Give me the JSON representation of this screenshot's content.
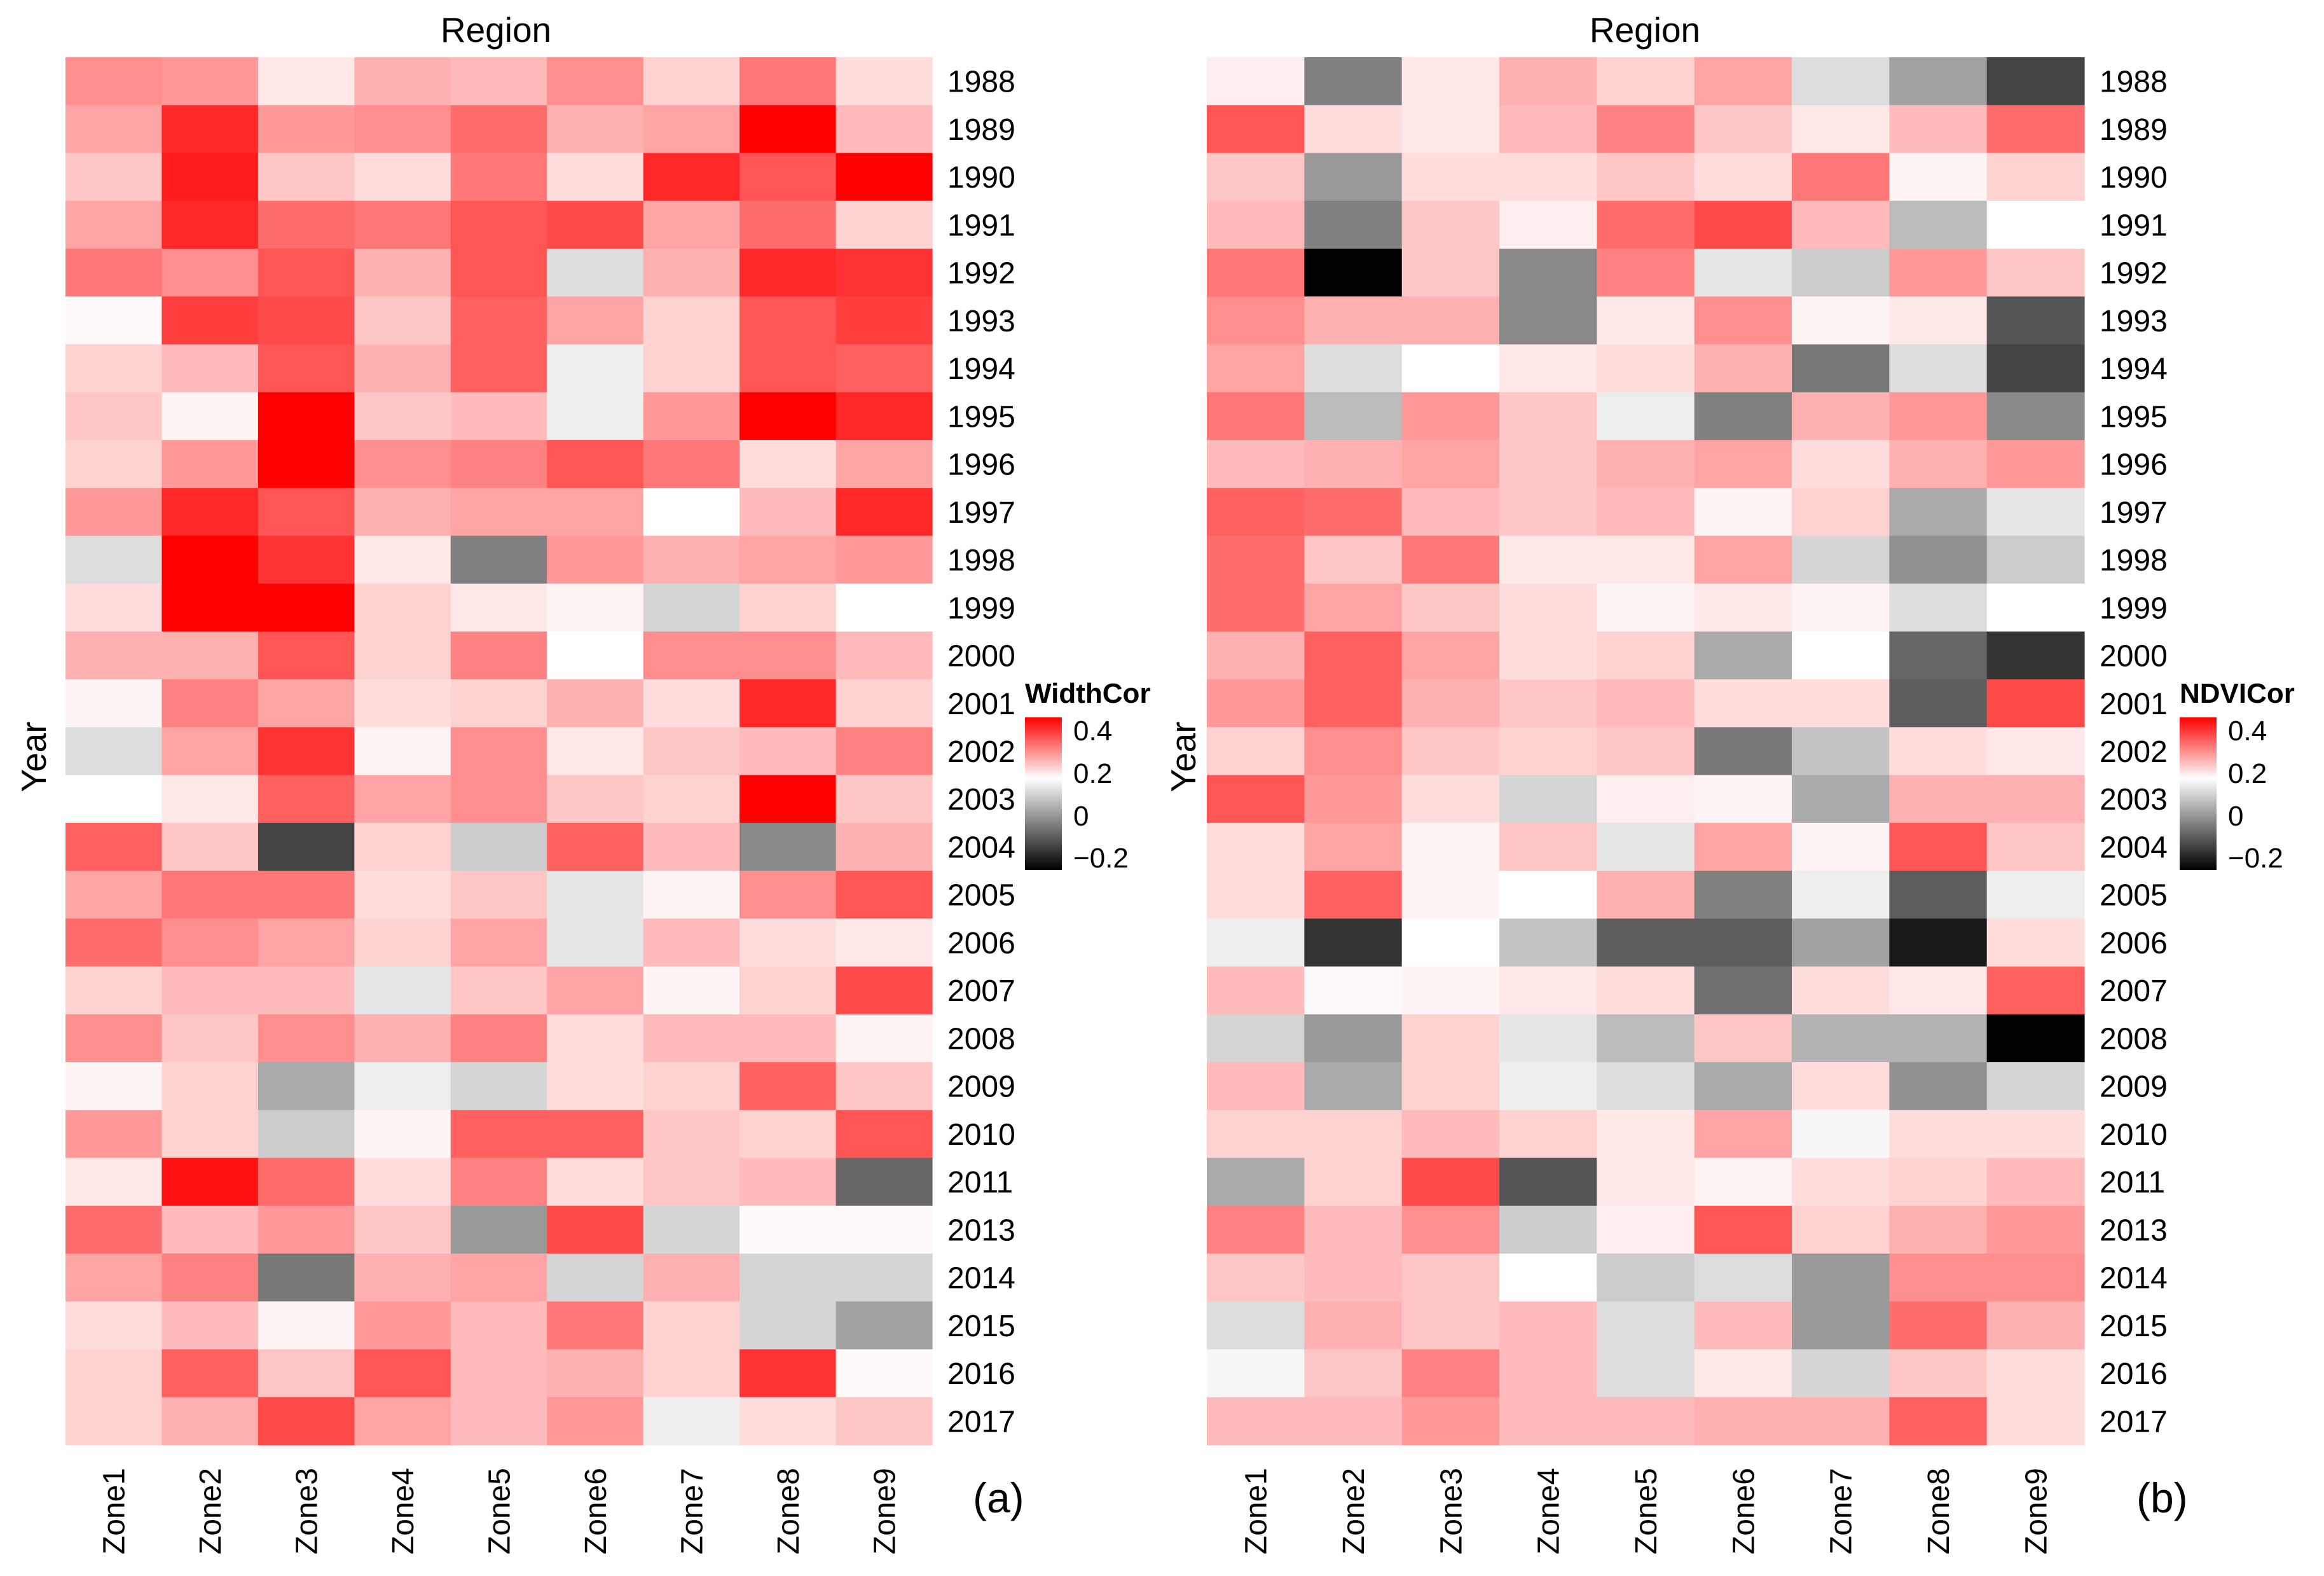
{
  "figure": {
    "panels": [
      "(a)",
      "(b)"
    ]
  },
  "chart_data": [
    {
      "type": "heatmap",
      "panel_label": "(a)",
      "title": "Region",
      "xlabel": "Region",
      "ylabel": "Year",
      "legend_title": "WidthCor",
      "legend_ticks": [
        "0.4",
        "0.2",
        "0",
        "−0.2"
      ],
      "scale": {
        "low": -0.3,
        "mid": 0,
        "high": 0.45,
        "low_color": "#000000",
        "mid_color": "#ffffff",
        "high_color": "#ff0000"
      },
      "columns": [
        "Zone1",
        "Zone2",
        "Zone3",
        "Zone4",
        "Zone5",
        "Zone6",
        "Zone7",
        "Zone8",
        "Zone9"
      ],
      "rows": [
        "1988",
        "1989",
        "1990",
        "1991",
        "1992",
        "1993",
        "1994",
        "1995",
        "1996",
        "1997",
        "1998",
        "1999",
        "2000",
        "2001",
        "2002",
        "2003",
        "2004",
        "2005",
        "2006",
        "2007",
        "2008",
        "2009",
        "2010",
        "2011",
        "2013",
        "2014",
        "2015",
        "2016",
        "2017"
      ],
      "values": [
        [
          0.2,
          0.18,
          0.04,
          0.14,
          0.12,
          0.2,
          0.08,
          0.24,
          0.06
        ],
        [
          0.16,
          0.38,
          0.18,
          0.2,
          0.26,
          0.14,
          0.16,
          0.45,
          0.12
        ],
        [
          0.1,
          0.4,
          0.1,
          0.06,
          0.24,
          0.06,
          0.38,
          0.3,
          0.45
        ],
        [
          0.16,
          0.38,
          0.26,
          0.24,
          0.3,
          0.32,
          0.16,
          0.26,
          0.08
        ],
        [
          0.24,
          0.2,
          0.3,
          0.14,
          0.3,
          -0.04,
          0.14,
          0.38,
          0.36
        ],
        [
          0.01,
          0.34,
          0.32,
          0.1,
          0.28,
          0.16,
          0.08,
          0.3,
          0.34
        ],
        [
          0.08,
          0.12,
          0.3,
          0.14,
          0.28,
          -0.02,
          0.08,
          0.3,
          0.28
        ],
        [
          0.1,
          0.02,
          0.45,
          0.1,
          0.12,
          -0.02,
          0.18,
          0.45,
          0.38
        ],
        [
          0.08,
          0.18,
          0.45,
          0.2,
          0.22,
          0.3,
          0.24,
          0.06,
          0.16
        ],
        [
          0.18,
          0.38,
          0.3,
          0.14,
          0.16,
          0.16,
          0.0,
          0.12,
          0.38
        ],
        [
          -0.04,
          0.45,
          0.36,
          0.04,
          -0.15,
          0.18,
          0.14,
          0.16,
          0.18
        ],
        [
          0.06,
          0.45,
          0.45,
          0.08,
          0.04,
          0.02,
          -0.05,
          0.08,
          0.0
        ],
        [
          0.14,
          0.14,
          0.3,
          0.08,
          0.22,
          0.0,
          0.2,
          0.2,
          0.12
        ],
        [
          0.02,
          0.22,
          0.16,
          0.06,
          0.08,
          0.14,
          0.06,
          0.38,
          0.08
        ],
        [
          -0.04,
          0.16,
          0.36,
          0.02,
          0.2,
          0.04,
          0.1,
          0.12,
          0.22
        ],
        [
          0.0,
          0.04,
          0.28,
          0.16,
          0.2,
          0.1,
          0.08,
          0.45,
          0.1
        ],
        [
          0.28,
          0.1,
          -0.22,
          0.08,
          -0.06,
          0.28,
          0.12,
          -0.14,
          0.14
        ],
        [
          0.16,
          0.24,
          0.24,
          0.06,
          0.1,
          -0.03,
          0.02,
          0.2,
          0.3
        ],
        [
          0.26,
          0.2,
          0.16,
          0.08,
          0.16,
          -0.03,
          0.12,
          0.06,
          0.04
        ],
        [
          0.08,
          0.12,
          0.12,
          -0.03,
          0.1,
          0.16,
          0.02,
          0.08,
          0.32
        ],
        [
          0.2,
          0.1,
          0.2,
          0.14,
          0.22,
          0.06,
          0.12,
          0.12,
          0.02
        ],
        [
          0.02,
          0.08,
          -0.1,
          -0.02,
          -0.05,
          0.06,
          0.08,
          0.28,
          0.1
        ],
        [
          0.18,
          0.08,
          -0.06,
          0.02,
          0.28,
          0.28,
          0.1,
          0.08,
          0.3
        ],
        [
          0.04,
          0.42,
          0.26,
          0.06,
          0.22,
          0.06,
          0.1,
          0.12,
          -0.18
        ],
        [
          0.26,
          0.12,
          0.18,
          0.1,
          -0.12,
          0.32,
          -0.05,
          0.01,
          0.01
        ],
        [
          0.16,
          0.22,
          -0.16,
          0.14,
          0.16,
          -0.05,
          0.14,
          -0.05,
          -0.05
        ],
        [
          0.06,
          0.12,
          0.02,
          0.18,
          0.12,
          0.24,
          0.08,
          -0.05,
          -0.11
        ],
        [
          0.08,
          0.28,
          0.1,
          0.3,
          0.12,
          0.14,
          0.08,
          0.36,
          0.01
        ],
        [
          0.08,
          0.14,
          0.32,
          0.16,
          0.12,
          0.18,
          -0.02,
          0.06,
          0.1
        ]
      ]
    },
    {
      "type": "heatmap",
      "panel_label": "(b)",
      "title": "Region",
      "xlabel": "Region",
      "ylabel": "Year",
      "legend_title": "NDVICor",
      "legend_ticks": [
        "0.4",
        "0.2",
        "0",
        "−0.2"
      ],
      "scale": {
        "low": -0.3,
        "mid": 0,
        "high": 0.45,
        "low_color": "#000000",
        "mid_color": "#ffffff",
        "high_color": "#ff0000"
      },
      "columns": [
        "Zone1",
        "Zone2",
        "Zone3",
        "Zone4",
        "Zone5",
        "Zone6",
        "Zone7",
        "Zone8",
        "Zone9"
      ],
      "rows": [
        "1988",
        "1989",
        "1990",
        "1991",
        "1992",
        "1993",
        "1994",
        "1995",
        "1996",
        "1997",
        "1998",
        "1999",
        "2000",
        "2001",
        "2002",
        "2003",
        "2004",
        "2005",
        "2006",
        "2007",
        "2008",
        "2009",
        "2010",
        "2011",
        "2013",
        "2014",
        "2015",
        "2016",
        "2017"
      ],
      "values": [
        [
          0.03,
          -0.15,
          0.04,
          0.14,
          0.08,
          0.16,
          -0.04,
          -0.11,
          -0.22
        ],
        [
          0.3,
          0.06,
          0.04,
          0.12,
          0.22,
          0.1,
          0.04,
          0.12,
          0.26
        ],
        [
          0.1,
          -0.12,
          0.06,
          0.06,
          0.1,
          0.06,
          0.24,
          0.02,
          0.08
        ],
        [
          0.12,
          -0.15,
          0.1,
          0.03,
          0.26,
          0.32,
          0.12,
          -0.08,
          0.0
        ],
        [
          0.24,
          -0.3,
          0.1,
          -0.14,
          0.22,
          -0.03,
          -0.06,
          0.18,
          0.1
        ],
        [
          0.2,
          0.14,
          0.14,
          -0.14,
          0.04,
          0.2,
          0.02,
          0.04,
          -0.2
        ],
        [
          0.16,
          -0.04,
          0.0,
          0.04,
          0.06,
          0.14,
          -0.16,
          -0.04,
          -0.22
        ],
        [
          0.24,
          -0.08,
          0.18,
          0.1,
          -0.02,
          -0.15,
          0.14,
          0.18,
          -0.14
        ],
        [
          0.12,
          0.14,
          0.16,
          0.1,
          0.14,
          0.16,
          0.06,
          0.14,
          0.18
        ],
        [
          0.28,
          0.26,
          0.12,
          0.1,
          0.12,
          0.02,
          0.08,
          -0.1,
          -0.03
        ],
        [
          0.26,
          0.1,
          0.24,
          0.04,
          0.04,
          0.16,
          -0.05,
          -0.13,
          -0.06
        ],
        [
          0.26,
          0.16,
          0.1,
          0.06,
          0.02,
          0.04,
          0.02,
          -0.04,
          0.0
        ],
        [
          0.14,
          0.28,
          0.16,
          0.06,
          0.08,
          -0.1,
          0.0,
          -0.18,
          -0.24
        ],
        [
          0.18,
          0.28,
          0.14,
          0.1,
          0.12,
          0.06,
          0.06,
          -0.19,
          0.32
        ],
        [
          0.08,
          0.2,
          0.1,
          0.08,
          0.1,
          -0.16,
          -0.07,
          0.06,
          0.04
        ],
        [
          0.3,
          0.18,
          0.06,
          -0.05,
          0.03,
          0.02,
          -0.1,
          0.14,
          0.14
        ],
        [
          0.06,
          0.16,
          0.02,
          0.1,
          -0.03,
          0.16,
          0.02,
          0.3,
          0.1
        ],
        [
          0.06,
          0.28,
          0.02,
          0.0,
          0.14,
          -0.15,
          -0.02,
          -0.19,
          -0.02
        ],
        [
          -0.02,
          -0.24,
          0.0,
          -0.07,
          -0.19,
          -0.19,
          -0.11,
          -0.27,
          0.06
        ],
        [
          0.12,
          0.01,
          0.02,
          0.04,
          0.06,
          -0.17,
          0.06,
          0.04,
          0.28
        ],
        [
          -0.05,
          -0.12,
          0.08,
          -0.03,
          -0.08,
          0.1,
          -0.09,
          -0.09,
          -0.3
        ],
        [
          0.12,
          -0.1,
          0.08,
          -0.02,
          -0.04,
          -0.1,
          0.06,
          -0.13,
          -0.05
        ],
        [
          0.08,
          0.08,
          0.12,
          0.08,
          0.04,
          0.16,
          -0.01,
          0.06,
          0.06
        ],
        [
          -0.1,
          0.08,
          0.32,
          -0.2,
          0.04,
          0.02,
          0.06,
          0.08,
          0.12
        ],
        [
          0.22,
          0.12,
          0.2,
          -0.06,
          0.03,
          0.3,
          0.08,
          0.14,
          0.18
        ],
        [
          0.1,
          0.12,
          0.1,
          0.0,
          -0.06,
          -0.04,
          -0.12,
          0.2,
          0.2
        ],
        [
          -0.04,
          0.14,
          0.1,
          0.12,
          -0.04,
          0.12,
          -0.12,
          0.26,
          0.14
        ],
        [
          -0.01,
          0.1,
          0.22,
          0.12,
          -0.04,
          0.04,
          -0.05,
          0.1,
          0.06
        ],
        [
          0.12,
          0.12,
          0.18,
          0.12,
          0.12,
          0.14,
          0.14,
          0.28,
          0.06
        ]
      ]
    }
  ]
}
